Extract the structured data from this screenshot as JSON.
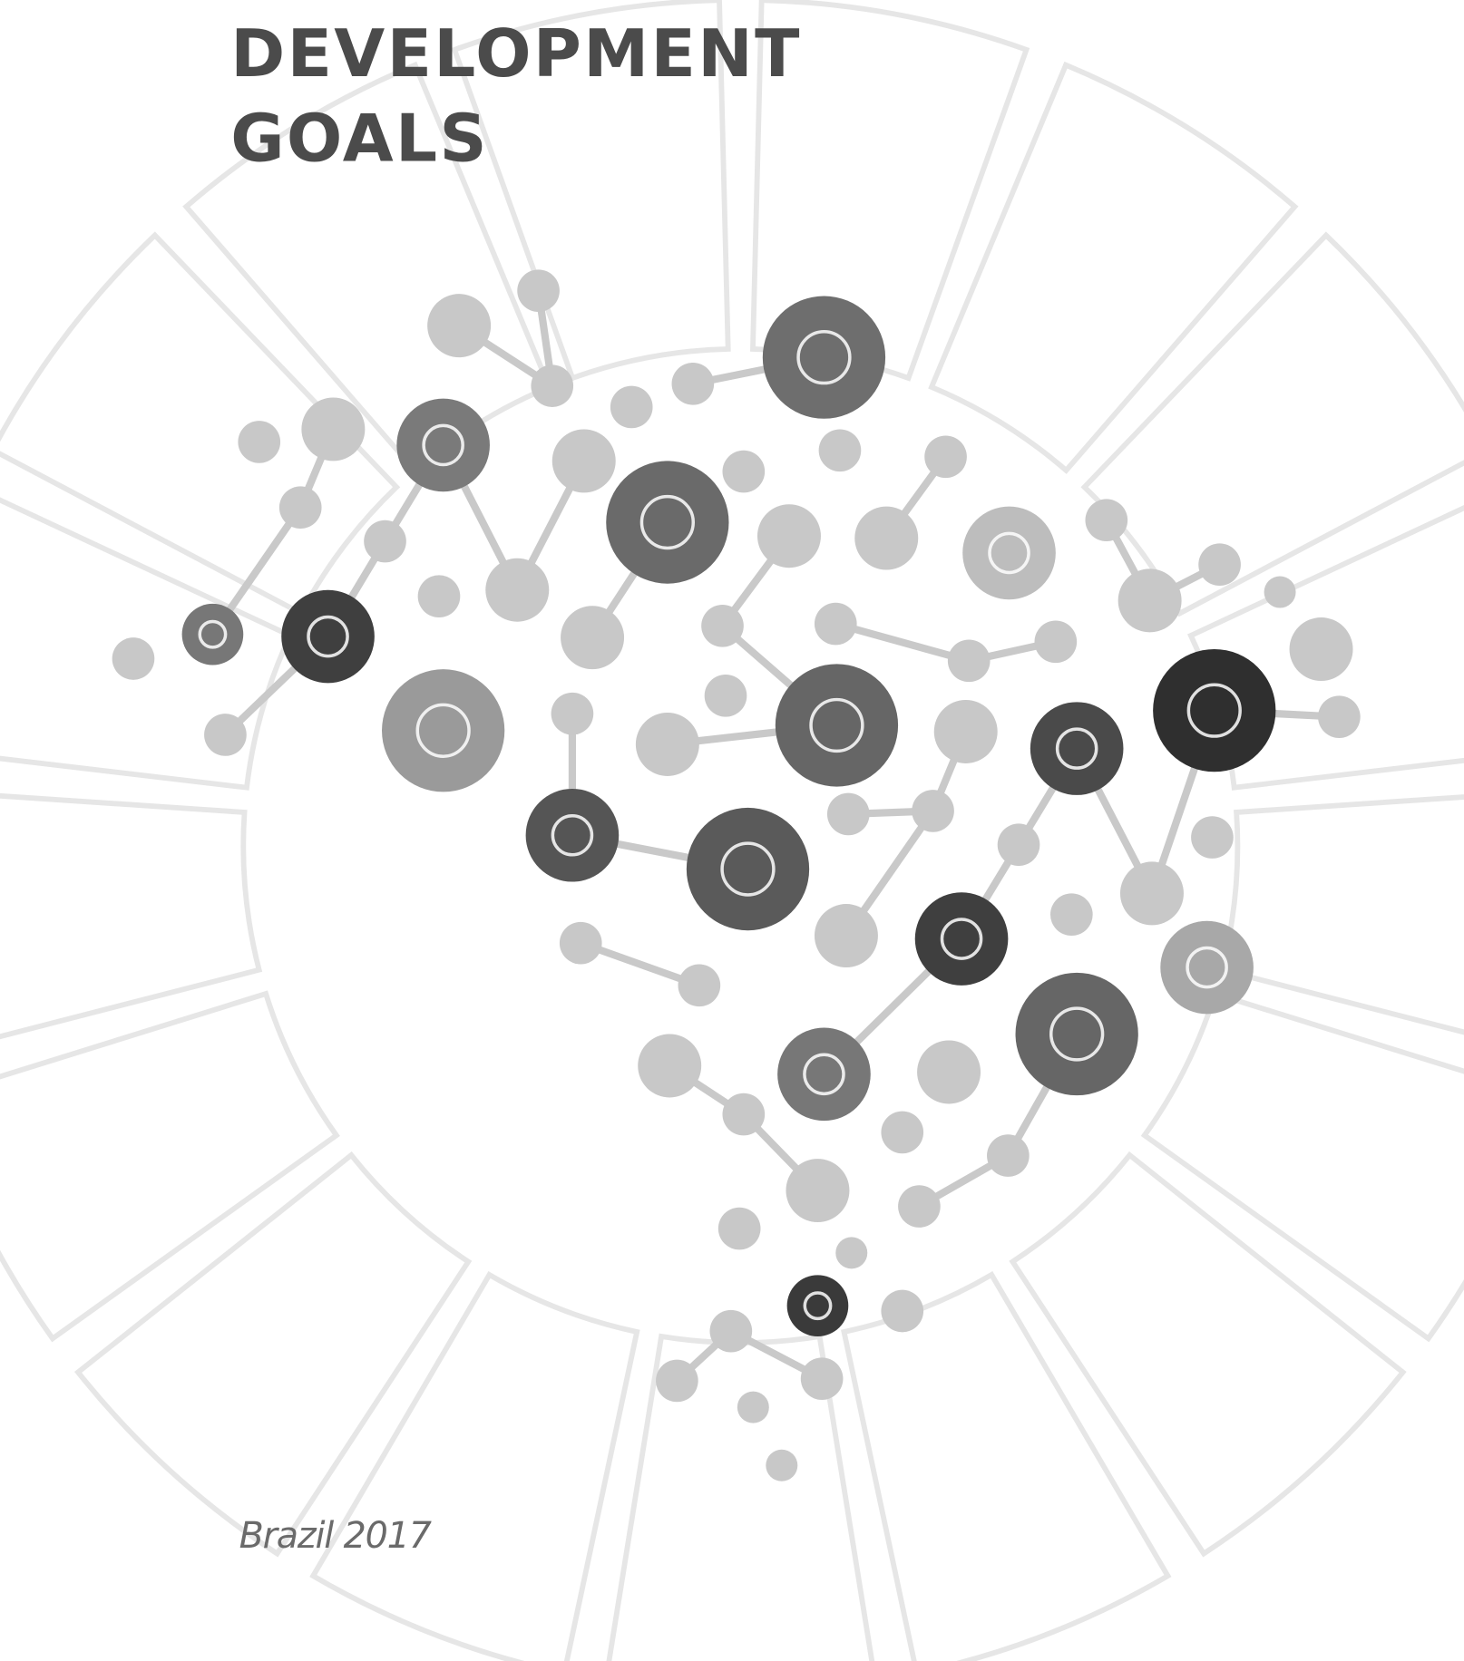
{
  "header": {
    "title_lines": [
      "DEVELOPMENT",
      "GOALS"
    ]
  },
  "footer": {
    "text": "Brazil 2017"
  }
}
